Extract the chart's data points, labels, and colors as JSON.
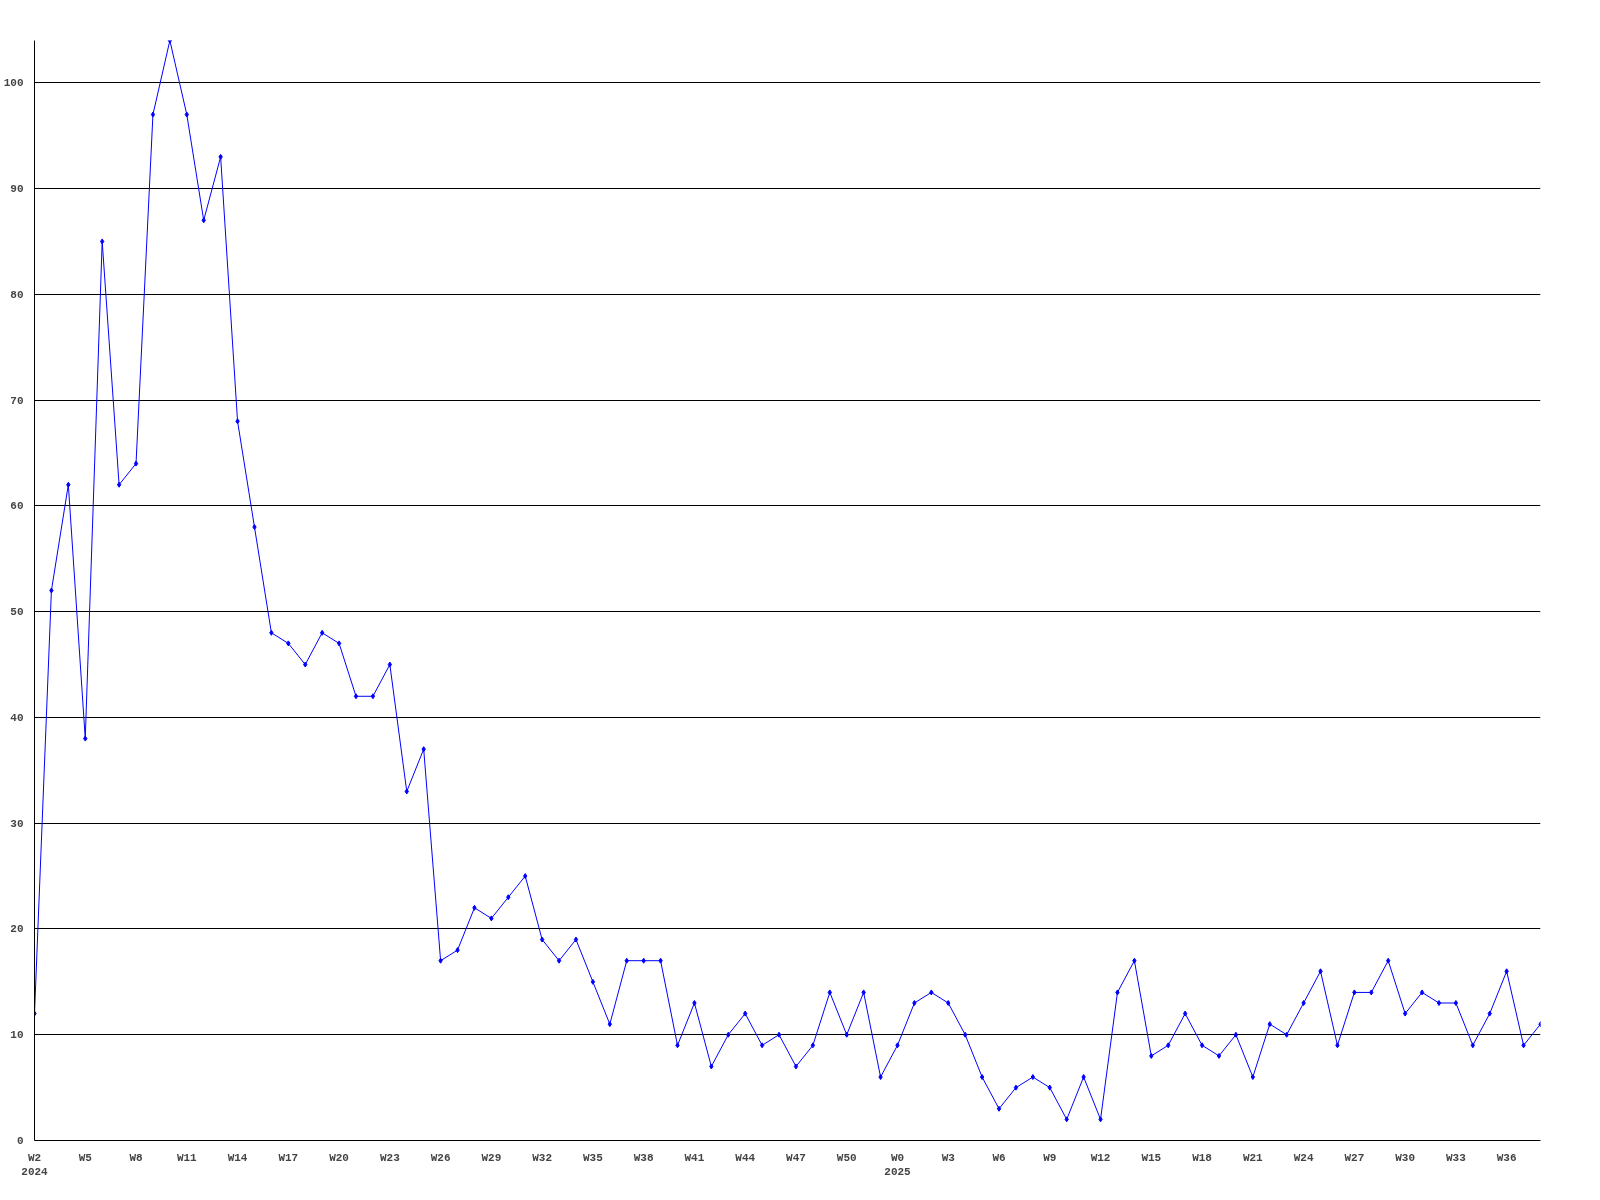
{
  "chart_data": {
    "type": "line",
    "categories": [
      "W2\n2024",
      null,
      null,
      "W5",
      null,
      null,
      "W8",
      null,
      null,
      "W11",
      null,
      null,
      "W14",
      null,
      null,
      "W17",
      null,
      null,
      "W20",
      null,
      null,
      "W23",
      null,
      null,
      "W26",
      null,
      null,
      "W29",
      null,
      null,
      "W32",
      null,
      null,
      "W35",
      null,
      null,
      "W38",
      null,
      null,
      "W41",
      null,
      null,
      "W44",
      null,
      null,
      "W47",
      null,
      null,
      "W50",
      null,
      null,
      "W0\n2025",
      null,
      null,
      "W3",
      null,
      null,
      "W6",
      null,
      null,
      "W9",
      null,
      null,
      "W12",
      null,
      null,
      "W15",
      null,
      null,
      "W18",
      null,
      null,
      "W21",
      null,
      null,
      "W24",
      null,
      null,
      "W27",
      null,
      null,
      "W30",
      null,
      null,
      "W33",
      null,
      null,
      "W36",
      null,
      null
    ],
    "series": [
      {
        "color": "#0000ff",
        "values": [
          12,
          52,
          62,
          38,
          85,
          62,
          64,
          97,
          104,
          97,
          87,
          93,
          68,
          58,
          48,
          47,
          45,
          48,
          47,
          42,
          42,
          45,
          33,
          37,
          17,
          18,
          22,
          21,
          23,
          25,
          19,
          17,
          19,
          15,
          11,
          17,
          17,
          17,
          9,
          13,
          7,
          10,
          12,
          9,
          10,
          7,
          9,
          14,
          10,
          14,
          6,
          9,
          13,
          14,
          13,
          10,
          6,
          3,
          5,
          6,
          5,
          2,
          6,
          2,
          14,
          17,
          8,
          9,
          12,
          9,
          8,
          10,
          6,
          11,
          10,
          13,
          16,
          9,
          14,
          14,
          17,
          12,
          14,
          13,
          13,
          9,
          12,
          16,
          9,
          11
        ]
      }
    ],
    "ylim": [
      0,
      104
    ],
    "yticks": [
      0,
      10,
      20,
      30,
      40,
      50,
      60,
      70,
      80,
      90,
      100
    ],
    "grid": "y",
    "marker": "diamond",
    "line_style": "solid"
  }
}
